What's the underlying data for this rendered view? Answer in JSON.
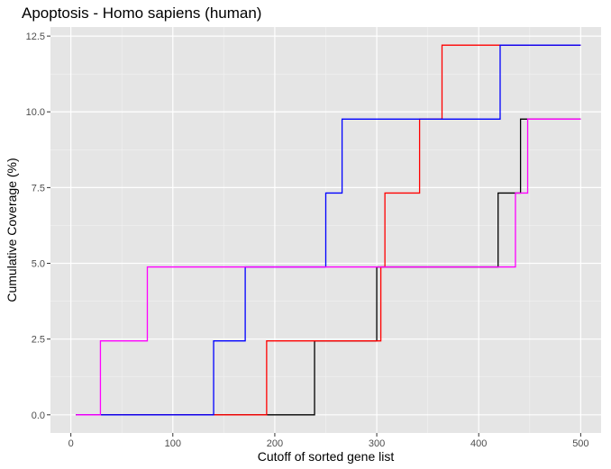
{
  "chart_data": {
    "type": "line",
    "step": true,
    "title": "Apoptosis - Homo sapiens (human)",
    "xlabel": "Cutoff of sorted gene list",
    "ylabel": "Cumulative Coverage (%)",
    "xlim": [
      -20,
      520
    ],
    "ylim": [
      -0.6,
      12.8
    ],
    "xticks": [
      0,
      100,
      200,
      300,
      400,
      500
    ],
    "xtick_labels": [
      "0",
      "100",
      "200",
      "300",
      "400",
      "500"
    ],
    "yticks": [
      0,
      2.5,
      5,
      7.5,
      10,
      12.5
    ],
    "ytick_labels": [
      "0.0",
      "2.5",
      "5.0",
      "7.5",
      "10.0",
      "12.5"
    ],
    "grid": true,
    "panel_background": "#e5e5e5",
    "series": [
      {
        "color": "#000000",
        "points": [
          [
            5,
            0
          ],
          [
            239,
            0
          ],
          [
            239,
            2.44
          ],
          [
            300,
            2.44
          ],
          [
            300,
            4.88
          ],
          [
            419,
            4.88
          ],
          [
            419,
            7.32
          ],
          [
            441,
            7.32
          ],
          [
            441,
            9.76
          ],
          [
            500,
            9.76
          ]
        ]
      },
      {
        "color": "#ff0000",
        "points": [
          [
            5,
            0
          ],
          [
            192,
            0
          ],
          [
            192,
            2.44
          ],
          [
            304,
            2.44
          ],
          [
            304,
            4.88
          ],
          [
            308,
            4.88
          ],
          [
            308,
            7.32
          ],
          [
            342,
            7.32
          ],
          [
            342,
            9.76
          ],
          [
            364,
            9.76
          ],
          [
            364,
            12.2
          ],
          [
            500,
            12.2
          ]
        ]
      },
      {
        "color": "#0000ff",
        "points": [
          [
            5,
            0
          ],
          [
            140,
            0
          ],
          [
            140,
            2.44
          ],
          [
            171,
            2.44
          ],
          [
            171,
            4.88
          ],
          [
            250,
            4.88
          ],
          [
            250,
            7.32
          ],
          [
            266,
            7.32
          ],
          [
            266,
            9.76
          ],
          [
            421,
            9.76
          ],
          [
            421,
            12.2
          ],
          [
            500,
            12.2
          ]
        ]
      },
      {
        "color": "#ff00ff",
        "points": [
          [
            5,
            0
          ],
          [
            29,
            0
          ],
          [
            29,
            2.44
          ],
          [
            75,
            2.44
          ],
          [
            75,
            4.88
          ],
          [
            436,
            4.88
          ],
          [
            436,
            7.32
          ],
          [
            448,
            7.32
          ],
          [
            448,
            9.76
          ],
          [
            500,
            9.76
          ]
        ]
      }
    ]
  }
}
